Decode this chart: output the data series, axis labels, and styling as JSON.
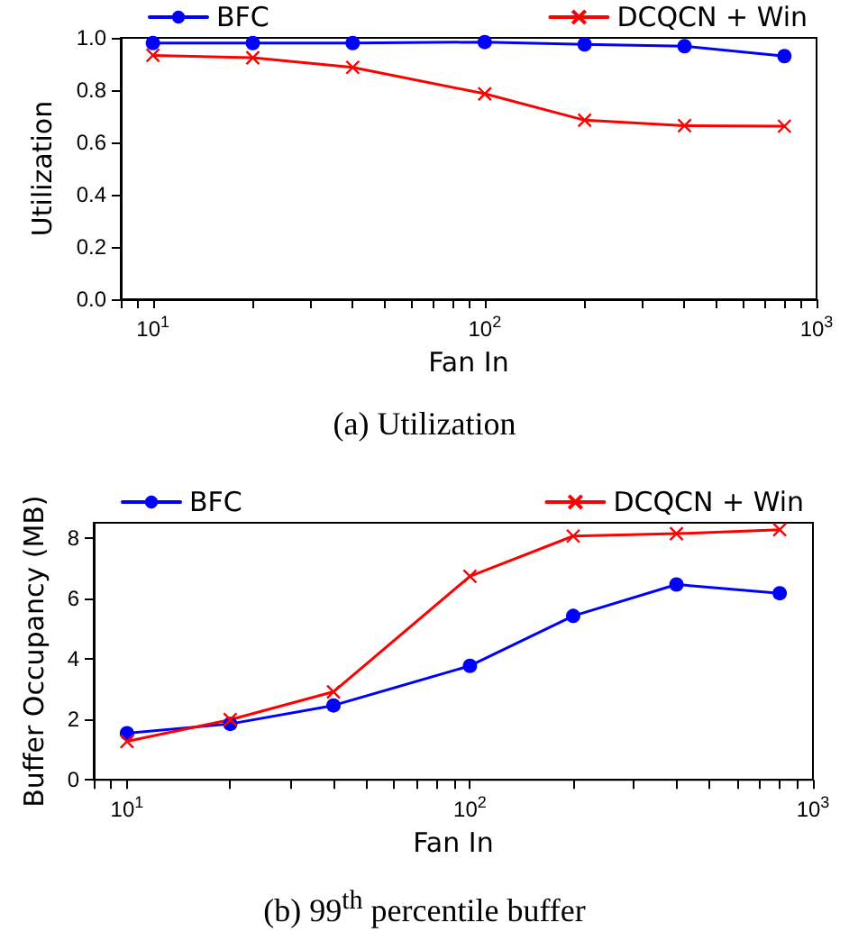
{
  "chart_data": [
    {
      "type": "line",
      "xlabel": "Fan In",
      "ylabel": "Utilization",
      "log": "x",
      "legend": "top",
      "grid": false,
      "annotations": [
        "(a) Utilization"
      ],
      "x": [
        10,
        20,
        40,
        100,
        200,
        400,
        800
      ],
      "xlim": [
        8,
        1000
      ],
      "xticks": [
        {
          "value": 8,
          "label": null
        },
        {
          "value": 9,
          "label": null
        },
        {
          "value": 10,
          "label": "10$^{1}$"
        },
        {
          "value": 20,
          "label": null
        },
        {
          "value": 30,
          "label": null
        },
        {
          "value": 40,
          "label": null
        },
        {
          "value": 50,
          "label": null
        },
        {
          "value": 60,
          "label": null
        },
        {
          "value": 70,
          "label": null
        },
        {
          "value": 80,
          "label": null
        },
        {
          "value": 90,
          "label": null
        },
        {
          "value": 100,
          "label": "10$^{2}$"
        },
        {
          "value": 200,
          "label": null
        },
        {
          "value": 300,
          "label": null
        },
        {
          "value": 400,
          "label": null
        },
        {
          "value": 500,
          "label": null
        },
        {
          "value": 600,
          "label": null
        },
        {
          "value": 700,
          "label": null
        },
        {
          "value": 800,
          "label": null
        },
        {
          "value": 900,
          "label": null
        },
        {
          "value": 1000,
          "label": "10$^{3}$"
        }
      ],
      "ylim": [
        0,
        1
      ],
      "yticks": [
        {
          "value": 0,
          "label": "0.0"
        },
        {
          "value": 0.2,
          "label": "0.2"
        },
        {
          "value": 0.4,
          "label": "0.4"
        },
        {
          "value": 0.6,
          "label": "0.6"
        },
        {
          "value": 0.8,
          "label": "0.8"
        },
        {
          "value": 1,
          "label": "1.0"
        }
      ],
      "series": [
        {
          "name": "BFC",
          "color": "#0000ff",
          "marker": "circle",
          "values": [
            0.98,
            0.98,
            0.98,
            0.984,
            0.975,
            0.968,
            0.93
          ]
        },
        {
          "name": "DCQCN + Win",
          "color": "#ff0000",
          "marker": "cross",
          "values": [
            0.933,
            0.924,
            0.887,
            0.786,
            0.685,
            0.664,
            0.662
          ]
        }
      ]
    },
    {
      "type": "line",
      "xlabel": "Fan In",
      "ylabel": "Buffer Occupancy (MB)",
      "log": "x",
      "legend": "top",
      "grid": false,
      "annotations": [
        "(b) 99$^{th}$ percentile buffer"
      ],
      "x": [
        10,
        20,
        40,
        100,
        200,
        400,
        800
      ],
      "xlim": [
        8,
        1000
      ],
      "xticks": [
        {
          "value": 8,
          "label": null
        },
        {
          "value": 9,
          "label": null
        },
        {
          "value": 10,
          "label": "10$^{1}$"
        },
        {
          "value": 20,
          "label": null
        },
        {
          "value": 30,
          "label": null
        },
        {
          "value": 40,
          "label": null
        },
        {
          "value": 50,
          "label": null
        },
        {
          "value": 60,
          "label": null
        },
        {
          "value": 70,
          "label": null
        },
        {
          "value": 80,
          "label": null
        },
        {
          "value": 90,
          "label": null
        },
        {
          "value": 100,
          "label": "10$^{2}$"
        },
        {
          "value": 200,
          "label": null
        },
        {
          "value": 300,
          "label": null
        },
        {
          "value": 400,
          "label": null
        },
        {
          "value": 500,
          "label": null
        },
        {
          "value": 600,
          "label": null
        },
        {
          "value": 700,
          "label": null
        },
        {
          "value": 800,
          "label": null
        },
        {
          "value": 900,
          "label": null
        },
        {
          "value": 1000,
          "label": "10$^{3}$"
        }
      ],
      "ylim": [
        0,
        8.5
      ],
      "yticks": [
        0,
        2,
        4,
        6,
        8
      ],
      "series": [
        {
          "name": "BFC",
          "color": "#0000ff",
          "marker": "circle",
          "values": [
            1.54,
            1.85,
            2.46,
            3.77,
            5.42,
            6.46,
            6.17
          ]
        },
        {
          "name": "DCQCN + Win",
          "color": "#ff0000",
          "marker": "cross",
          "values": [
            1.27,
            1.99,
            2.91,
            6.73,
            8.06,
            8.14,
            8.27
          ]
        }
      ]
    }
  ]
}
